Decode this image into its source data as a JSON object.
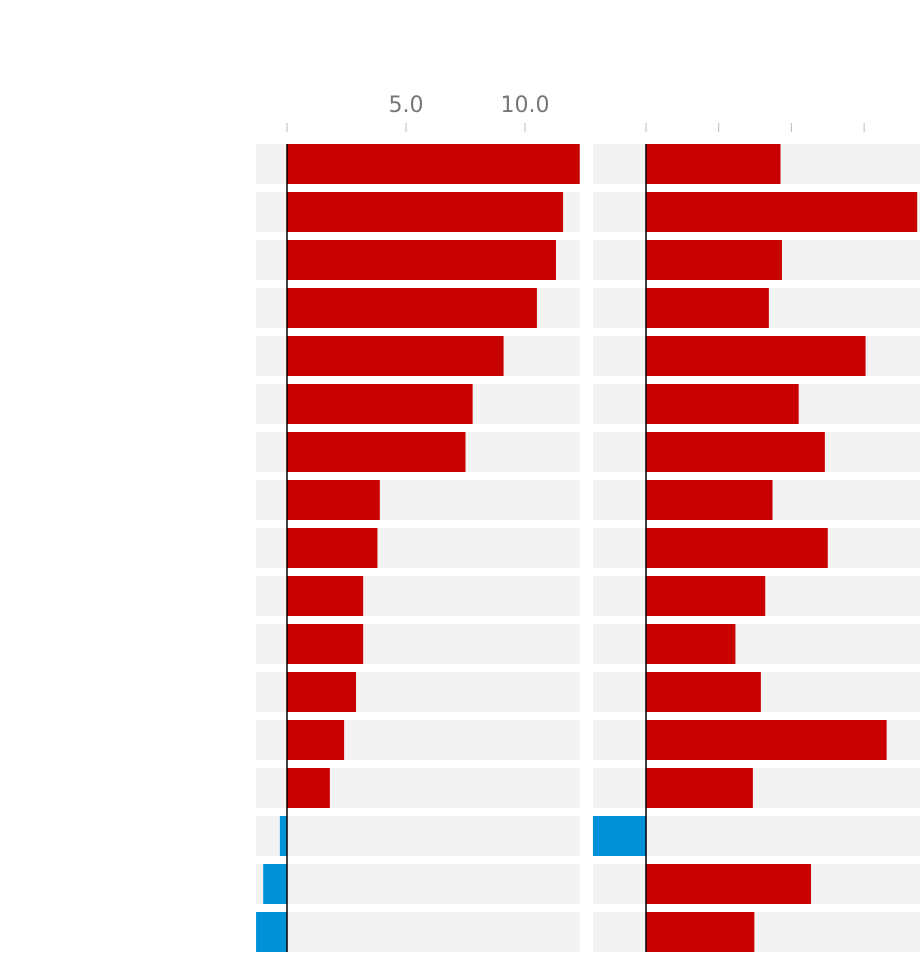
{
  "colors": {
    "positive": "#c80000",
    "negative": "#0092d8",
    "row_background": "#f3f3f3",
    "tick_text": "#777777"
  },
  "chart_data": [
    {
      "type": "bar",
      "orientation": "horizontal",
      "title": "",
      "xlabel": "",
      "ylabel": "",
      "grid": false,
      "xlim": [
        -1.3,
        12.3
      ],
      "x_tick_labels": [
        "5.0",
        "10.0"
      ],
      "x_ticks": [
        0,
        5,
        10
      ],
      "series": [
        {
          "values": [
            12.3,
            11.6,
            11.3,
            10.5,
            9.1,
            7.8,
            7.5,
            3.9,
            3.8,
            3.2,
            3.2,
            2.9,
            2.4,
            1.8,
            -0.3,
            -1.0,
            -1.3
          ]
        }
      ]
    },
    {
      "type": "bar",
      "orientation": "horizontal",
      "title": "",
      "xlabel": "",
      "ylabel": "",
      "grid": false,
      "xlim": [
        -7.3,
        37.3
      ],
      "x_tick_labels": [],
      "x_ticks": [
        0,
        10,
        20,
        30
      ],
      "series": [
        {
          "values": [
            18.5,
            37.3,
            18.7,
            16.9,
            30.2,
            21.0,
            24.6,
            17.4,
            25.0,
            16.4,
            12.3,
            15.8,
            33.1,
            14.7,
            -7.3,
            22.7,
            14.9
          ]
        }
      ]
    }
  ]
}
